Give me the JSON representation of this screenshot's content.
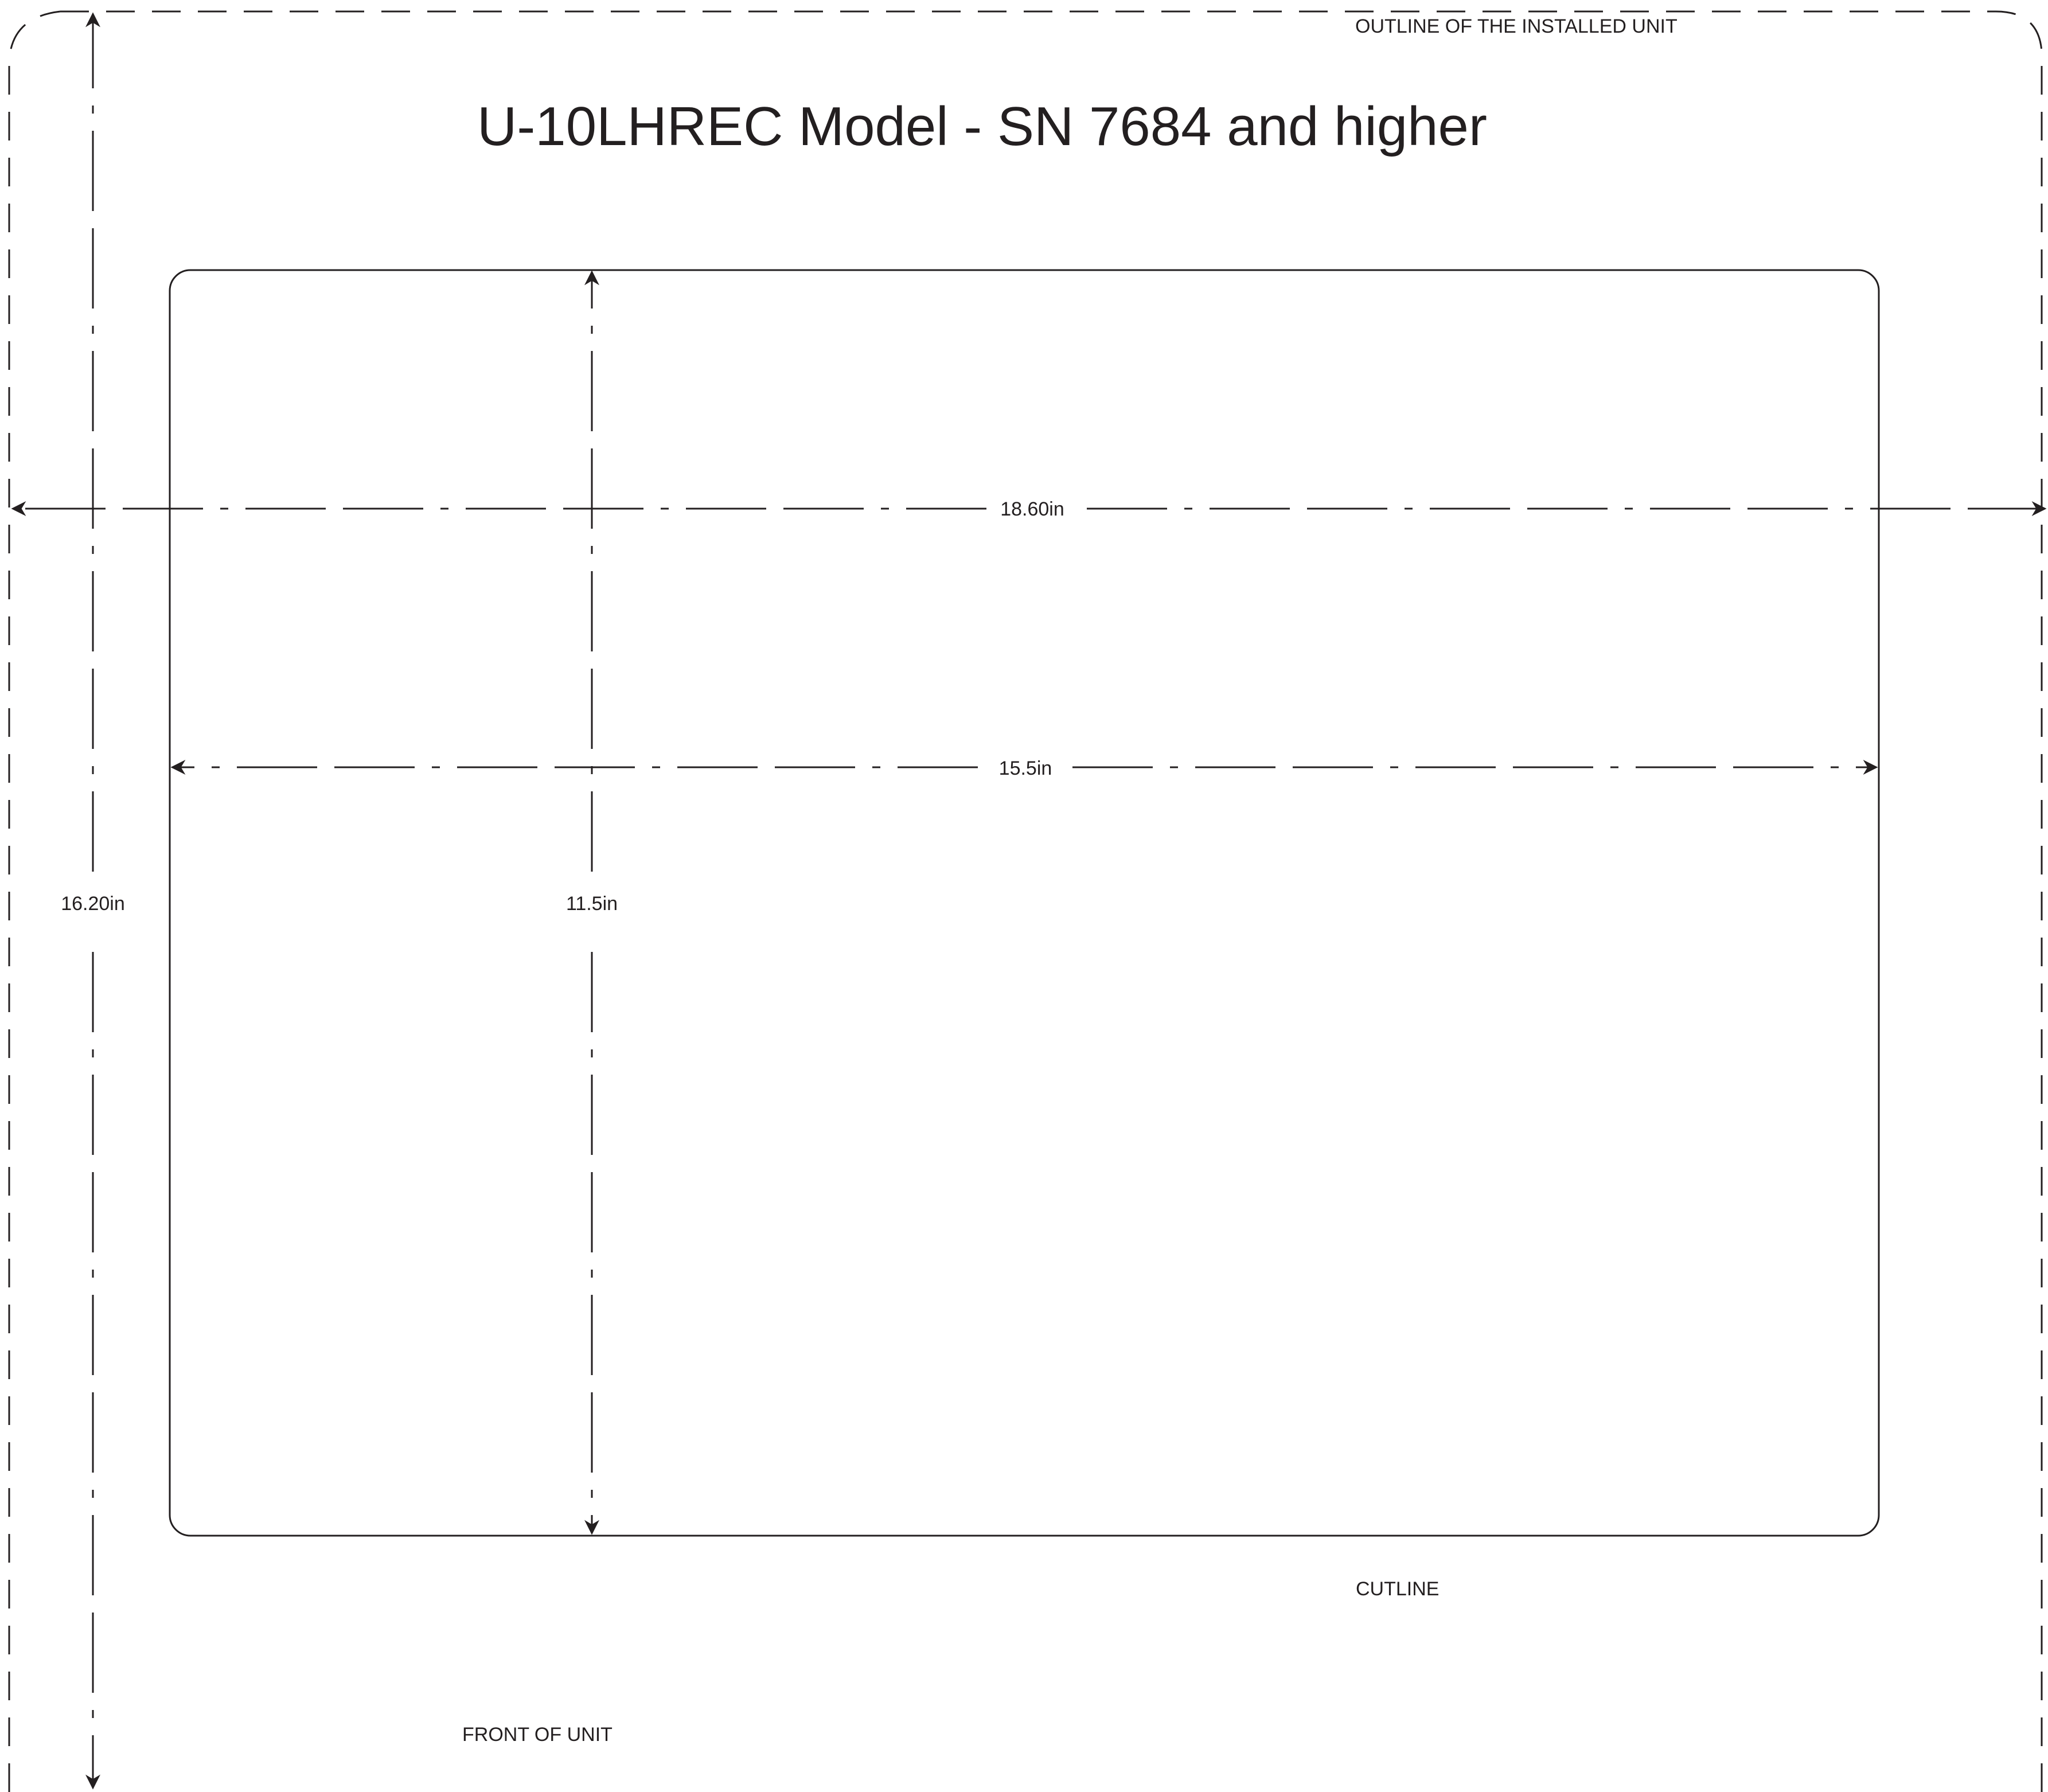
{
  "title": "U-10LHREC Model - SN 7684 and higher",
  "labels": {
    "outline": "OUTLINE OF THE INSTALLED UNIT",
    "cutline": "CUTLINE",
    "front": "FRONT OF UNIT"
  },
  "dimensions": {
    "outline_width": "18.60in",
    "outline_depth": "16.20in",
    "cutout_width": "15.5in",
    "cutout_depth": "11.5in"
  },
  "colors": {
    "ink": "#231f20",
    "background": "#ffffff"
  }
}
